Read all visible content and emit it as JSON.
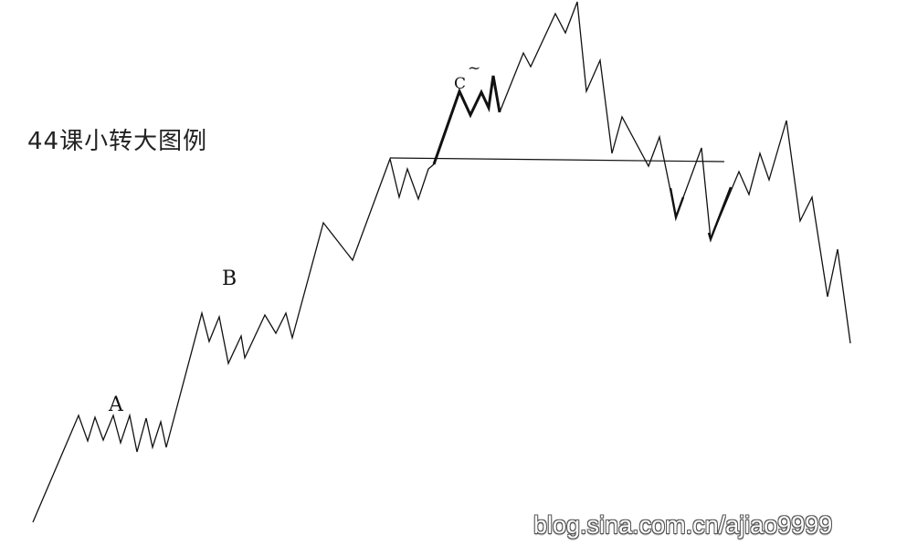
{
  "title": "44课小转大图例",
  "watermark": "blog.sina.com.cn/ajiao9999",
  "labels": {
    "A": "A",
    "B": "B",
    "C": "C",
    "tilde": "~"
  },
  "colors": {
    "line": "#111111",
    "background": "#ffffff"
  }
}
